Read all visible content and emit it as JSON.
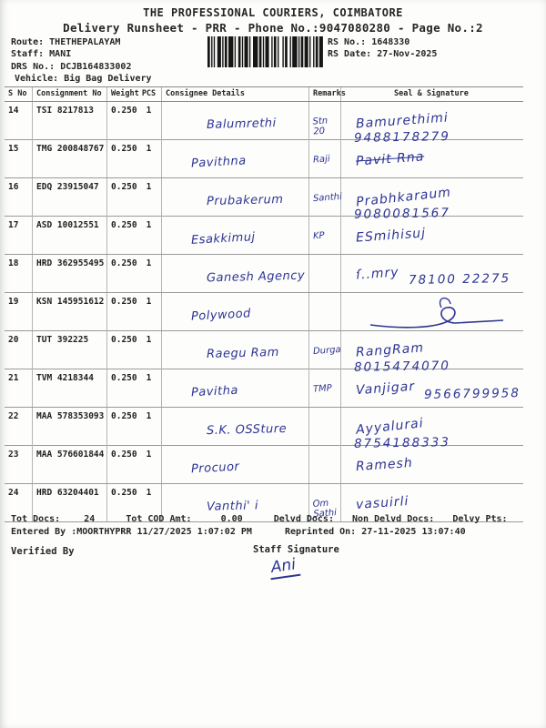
{
  "header": {
    "title1": "THE PROFESSIONAL COURIERS, COIMBATORE",
    "title2": "Delivery Runsheet - PRR - Phone No.:9047080280 - Page No.:2",
    "route_label": "Route:",
    "route": "THETHEPALAYAM",
    "staff_label": "Staff:",
    "staff": "MANI",
    "drs_label": "DRS No.:",
    "drs": "DCJB164833002",
    "vehicle_label": "Vehicle:",
    "vehicle": "Big Bag Delivery",
    "rs_no_label": "RS No.:",
    "rs_no": "1648330",
    "rs_date_label": "RS Date:",
    "rs_date": "27-Nov-2025",
    "barcode": "barcode-1d"
  },
  "table": {
    "columns": [
      "S No",
      "Consignment No",
      "Weight",
      "PCS",
      "Consignee Details",
      "Remarks",
      "Seal & Signature"
    ],
    "rows": [
      {
        "sno": "14",
        "consignment": "TSI 8217813",
        "weight": "0.250",
        "pcs": "1",
        "consignee": "Balumrethi",
        "remark": "Stn\n20",
        "sig": "Bamurethimi",
        "phone": "9488178279",
        "strike": false,
        "flourish": false
      },
      {
        "sno": "15",
        "consignment": "TMG 200848767",
        "weight": "0.250",
        "pcs": "1",
        "consignee": "Pavithna",
        "remark": "Raji",
        "sig": "Pavit Rna",
        "phone": "",
        "strike": true,
        "flourish": false
      },
      {
        "sno": "16",
        "consignment": "EDQ 23915047",
        "weight": "0.250",
        "pcs": "1",
        "consignee": "Prubakerum",
        "remark": "Santhi",
        "sig": "Prabhkaraum",
        "phone": "9080081567",
        "strike": false,
        "flourish": false
      },
      {
        "sno": "17",
        "consignment": "ASD 10012551",
        "weight": "0.250",
        "pcs": "1",
        "consignee": "Esakkimuj",
        "remark": "KP",
        "sig": "ESmihisuj",
        "phone": "",
        "strike": false,
        "flourish": false
      },
      {
        "sno": "18",
        "consignment": "HRD 362955495",
        "weight": "0.250",
        "pcs": "1",
        "consignee": "Ganesh Agency",
        "remark": "",
        "sig": "ſ..mry",
        "phone": "78100 22275",
        "strike": false,
        "flourish": false
      },
      {
        "sno": "19",
        "consignment": "KSN 145951612",
        "weight": "0.250",
        "pcs": "1",
        "consignee": "Polywood",
        "remark": "",
        "sig": "",
        "phone": "",
        "strike": false,
        "flourish": true
      },
      {
        "sno": "20",
        "consignment": "TUT 392225",
        "weight": "0.250",
        "pcs": "1",
        "consignee": "Raegu Ram",
        "remark": "Durga",
        "sig": "RangRam",
        "phone": "8015474070",
        "strike": false,
        "flourish": false
      },
      {
        "sno": "21",
        "consignment": "TVM 4218344",
        "weight": "0.250",
        "pcs": "1",
        "consignee": "Pavitha",
        "remark": "TMP",
        "sig": "Vanjigar",
        "phone": "9566799958",
        "strike": false,
        "flourish": false
      },
      {
        "sno": "22",
        "consignment": "MAA 578353093",
        "weight": "0.250",
        "pcs": "1",
        "consignee": "S.K. OSSture",
        "remark": "",
        "sig": "Ayyalurai",
        "phone": "8754188333",
        "strike": false,
        "flourish": false
      },
      {
        "sno": "23",
        "consignment": "MAA 576601844",
        "weight": "0.250",
        "pcs": "1",
        "consignee": "Procuor",
        "remark": "",
        "sig": "Ramesh",
        "phone": "",
        "strike": false,
        "flourish": false
      },
      {
        "sno": "24",
        "consignment": "HRD 63204401",
        "weight": "0.250",
        "pcs": "1",
        "consignee": "Vanthi' i",
        "remark": "Om\nSathi",
        "sig": "vasuirli",
        "phone": "",
        "strike": false,
        "flourish": false
      }
    ]
  },
  "footer": {
    "tot_docs_label": "Tot Docs:",
    "tot_docs": "24",
    "tot_cod_label": "Tot COD Amt:",
    "tot_cod": "0.00",
    "delvd_label": "Delvd Docs:",
    "non_delvd_label": "Non Delvd Docs:",
    "delvy_pts_label": "Delvy Pts:",
    "entered_by": "Entered By :MOORTHYPRR 11/27/2025 1:07:02 PM",
    "reprinted": "Reprinted On: 27-11-2025 13:07:40",
    "verified_by": "Verified By",
    "staff_sig_label": "Staff Signature",
    "staff_sig_hw": "Ani"
  },
  "colors": {
    "ink_blue": "#2d3494",
    "print_black": "#262626"
  }
}
